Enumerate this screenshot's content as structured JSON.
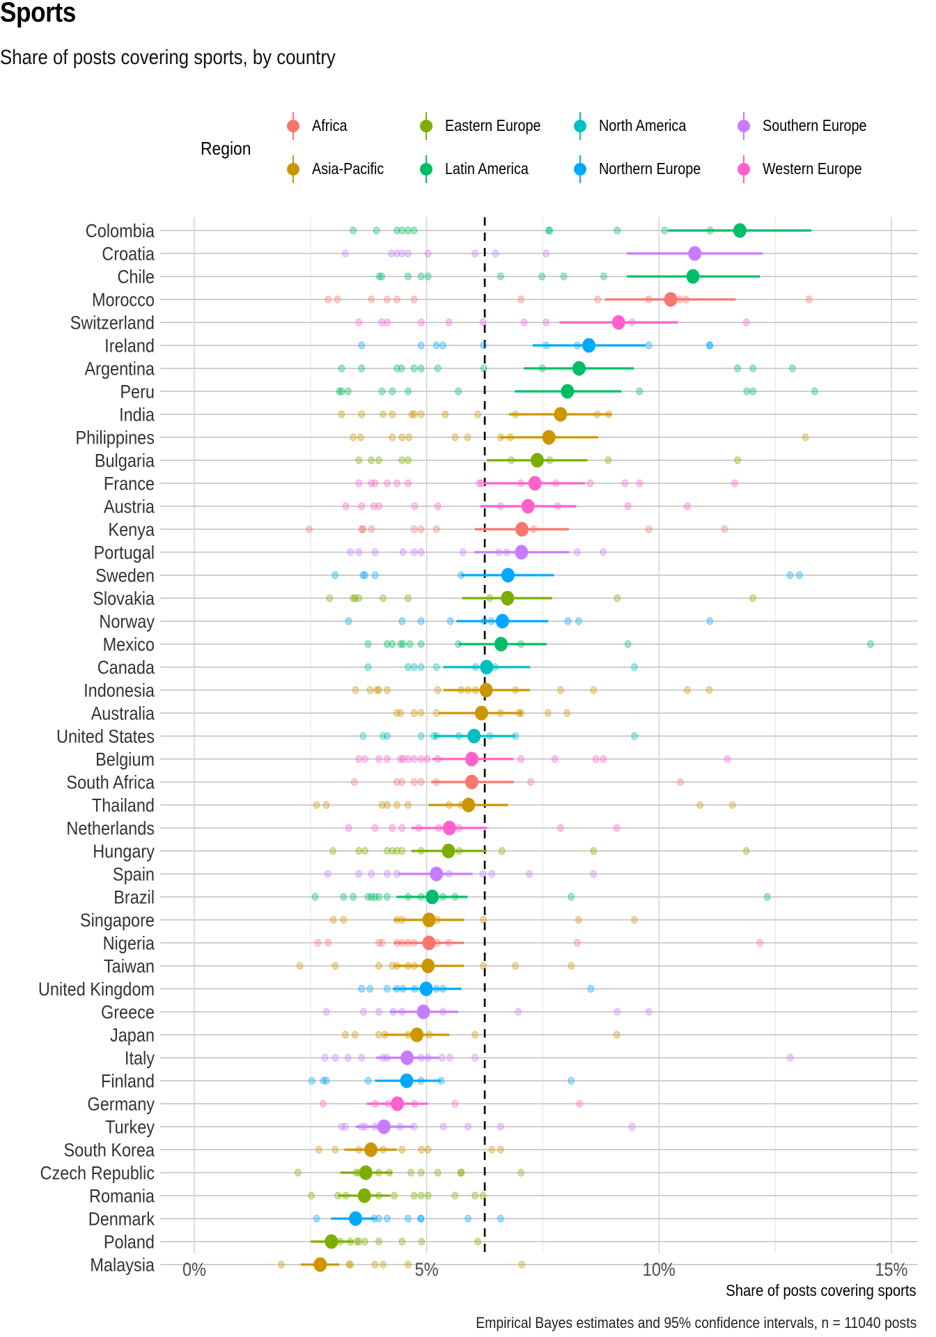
{
  "chart_data": {
    "type": "scatter",
    "title": "Sports",
    "subtitle": "Share of posts covering sports, by country",
    "xlabel": "Share of posts covering sports",
    "ylabel": "",
    "caption": "Empirical Bayes estimates and 95% confidence intervals, n = 11040 posts",
    "xlim": [
      -0.7,
      15.6
    ],
    "x_ticks": [
      0,
      5,
      10,
      15
    ],
    "x_tick_labels": [
      "0%",
      "5%",
      "10%",
      "15%"
    ],
    "reference_line": {
      "x": 6.25,
      "style": "dashed"
    },
    "grid": true,
    "legend": {
      "title": "Region",
      "placement": "top",
      "entries": [
        {
          "name": "Africa",
          "color": "#F8766D"
        },
        {
          "name": "Asia-Pacific",
          "color": "#CD9600"
        },
        {
          "name": "Eastern Europe",
          "color": "#7CAE00"
        },
        {
          "name": "Latin America",
          "color": "#00BE67"
        },
        {
          "name": "North America",
          "color": "#00BFC4"
        },
        {
          "name": "Northern Europe",
          "color": "#00A9FF"
        },
        {
          "name": "Southern Europe",
          "color": "#C77CFF"
        },
        {
          "name": "Western Europe",
          "color": "#FF61CC"
        }
      ]
    },
    "countries": [
      {
        "name": "Colombia",
        "region": "Latin America",
        "estimate": 11.74,
        "ci": [
          10.19,
          13.28
        ],
        "raw": [
          3.42,
          3.92,
          4.36,
          4.47,
          4.6,
          4.73,
          7.62,
          7.65,
          9.1,
          10.12,
          11.1
        ]
      },
      {
        "name": "Croatia",
        "region": "Southern Europe",
        "estimate": 10.77,
        "ci": [
          9.31,
          12.23
        ],
        "raw": [
          3.25,
          4.24,
          4.36,
          4.47,
          4.6,
          5.03,
          6.04,
          6.48,
          7.57
        ]
      },
      {
        "name": "Chile",
        "region": "Latin America",
        "estimate": 10.73,
        "ci": [
          9.31,
          12.17
        ],
        "raw": [
          3.98,
          4.03,
          4.6,
          4.88,
          5.03,
          6.59,
          7.48,
          7.95,
          8.81
        ]
      },
      {
        "name": "Morocco",
        "region": "Africa",
        "estimate": 10.25,
        "ci": [
          8.84,
          11.65
        ],
        "raw": [
          2.88,
          3.08,
          3.81,
          4.15,
          4.36,
          4.73,
          7.03,
          8.68,
          9.78,
          10.45,
          10.58,
          13.23
        ]
      },
      {
        "name": "Switzerland",
        "region": "Western Europe",
        "estimate": 9.13,
        "ci": [
          7.86,
          10.41
        ],
        "raw": [
          3.54,
          4.03,
          4.15,
          4.88,
          5.48,
          6.21,
          7.1,
          7.57,
          9.42,
          11.88
        ]
      },
      {
        "name": "Ireland",
        "region": "Northern Europe",
        "estimate": 8.49,
        "ci": [
          7.28,
          9.71
        ],
        "raw": [
          3.6,
          4.88,
          5.21,
          5.35,
          6.22,
          7.57,
          8.24,
          9.78,
          11.09,
          11.09
        ]
      },
      {
        "name": "Argentina",
        "region": "Latin America",
        "estimate": 8.28,
        "ci": [
          7.09,
          9.46
        ],
        "raw": [
          3.17,
          3.6,
          4.36,
          4.46,
          4.73,
          4.88,
          5.24,
          6.23,
          7.49,
          11.69,
          12.02,
          12.87
        ]
      },
      {
        "name": "Peru",
        "region": "Latin America",
        "estimate": 8.03,
        "ci": [
          6.9,
          9.19
        ],
        "raw": [
          3.12,
          3.17,
          3.31,
          4.04,
          4.26,
          4.6,
          5.68,
          9.58,
          11.89,
          12.02,
          13.35
        ]
      },
      {
        "name": "India",
        "region": "Asia-Pacific",
        "estimate": 7.88,
        "ci": [
          6.77,
          8.98
        ],
        "raw": [
          3.17,
          3.6,
          4.06,
          4.26,
          4.68,
          4.73,
          4.88,
          5.4,
          6.1,
          6.91,
          8.67,
          8.92
        ]
      },
      {
        "name": "Philippines",
        "region": "Asia-Pacific",
        "estimate": 7.63,
        "ci": [
          6.58,
          8.69
        ],
        "raw": [
          3.42,
          3.58,
          4.26,
          4.47,
          4.62,
          5.61,
          5.88,
          6.59,
          6.8,
          13.15
        ]
      },
      {
        "name": "Bulgaria",
        "region": "Eastern Europe",
        "estimate": 7.38,
        "ci": [
          6.3,
          8.46
        ],
        "raw": [
          3.54,
          3.81,
          3.97,
          4.47,
          4.6,
          6.82,
          7.65,
          8.91,
          11.69
        ]
      },
      {
        "name": "France",
        "region": "Western Europe",
        "estimate": 7.33,
        "ci": [
          6.24,
          8.41
        ],
        "raw": [
          3.54,
          3.81,
          3.89,
          4.15,
          4.36,
          4.6,
          6.13,
          6.18,
          7.03,
          7.78,
          8.52,
          9.27,
          9.58,
          11.63
        ]
      },
      {
        "name": "Austria",
        "region": "Western Europe",
        "estimate": 7.18,
        "ci": [
          6.15,
          8.22
        ],
        "raw": [
          3.26,
          3.6,
          3.86,
          3.97,
          4.74,
          5.24,
          6.59,
          7.82,
          9.33,
          10.61
        ]
      },
      {
        "name": "Kenya",
        "region": "Africa",
        "estimate": 7.05,
        "ci": [
          6.04,
          8.06
        ],
        "raw": [
          2.47,
          3.6,
          3.63,
          3.81,
          4.73,
          4.88,
          5.21,
          7.3,
          9.78,
          11.41
        ]
      },
      {
        "name": "Portugal",
        "region": "Southern Europe",
        "estimate": 7.04,
        "ci": [
          6.02,
          8.07
        ],
        "raw": [
          3.36,
          3.54,
          3.89,
          4.49,
          4.73,
          4.88,
          5.78,
          6.55,
          6.72,
          8.24,
          8.8
        ]
      },
      {
        "name": "Sweden",
        "region": "Northern Europe",
        "estimate": 6.75,
        "ci": [
          5.74,
          7.74
        ],
        "raw": [
          3.03,
          3.63,
          3.67,
          3.89,
          5.74,
          12.82,
          13.02
        ]
      },
      {
        "name": "Slovakia",
        "region": "Eastern Europe",
        "estimate": 6.74,
        "ci": [
          5.76,
          7.7
        ],
        "raw": [
          2.91,
          3.42,
          3.46,
          3.54,
          4.06,
          4.6,
          6.36,
          9.1,
          12.02
        ]
      },
      {
        "name": "Norway",
        "region": "Northern Europe",
        "estimate": 6.63,
        "ci": [
          5.64,
          7.62
        ],
        "raw": [
          3.32,
          4.47,
          4.88,
          5.51,
          6.24,
          6.39,
          8.04,
          8.27,
          11.09
        ]
      },
      {
        "name": "Mexico",
        "region": "Latin America",
        "estimate": 6.6,
        "ci": [
          5.68,
          7.58
        ],
        "raw": [
          3.74,
          4.15,
          4.26,
          4.44,
          4.49,
          4.64,
          4.88,
          5.68,
          7.03,
          9.33,
          14.55
        ]
      },
      {
        "name": "Canada",
        "region": "North America",
        "estimate": 6.29,
        "ci": [
          5.36,
          7.23
        ],
        "raw": [
          3.74,
          4.6,
          4.73,
          4.88,
          5.21,
          6.05,
          6.47,
          9.47
        ]
      },
      {
        "name": "Indonesia",
        "region": "Asia-Pacific",
        "estimate": 6.28,
        "ci": [
          5.36,
          7.22
        ],
        "raw": [
          3.47,
          3.78,
          3.93,
          3.97,
          4.15,
          5.24,
          5.74,
          5.89,
          6.05,
          6.91,
          7.88,
          8.59,
          10.61,
          11.08
        ]
      },
      {
        "name": "Australia",
        "region": "Asia-Pacific",
        "estimate": 6.18,
        "ci": [
          5.26,
          7.05
        ],
        "raw": [
          4.36,
          4.44,
          4.73,
          4.88,
          5.21,
          6.59,
          6.99,
          7.03,
          7.61,
          8.02
        ]
      },
      {
        "name": "United States",
        "region": "North America",
        "estimate": 6.02,
        "ci": [
          5.16,
          6.91
        ],
        "raw": [
          3.63,
          4.06,
          4.15,
          4.88,
          5.15,
          5.21,
          5.69,
          6.36,
          6.91,
          9.47
        ]
      },
      {
        "name": "Belgium",
        "region": "Western Europe",
        "estimate": 5.97,
        "ci": [
          5.12,
          6.87
        ],
        "raw": [
          3.54,
          3.67,
          3.97,
          4.15,
          4.44,
          4.49,
          4.6,
          4.73,
          4.88,
          5.01,
          5.24,
          7.03,
          7.76,
          8.64,
          8.8,
          11.47
        ]
      },
      {
        "name": "South Africa",
        "region": "Africa",
        "estimate": 5.97,
        "ci": [
          5.1,
          6.87
        ],
        "raw": [
          3.44,
          4.36,
          4.47,
          4.73,
          4.88,
          5.21,
          7.24,
          10.46
        ]
      },
      {
        "name": "Thailand",
        "region": "Asia-Pacific",
        "estimate": 5.9,
        "ci": [
          5.04,
          6.75
        ],
        "raw": [
          2.63,
          2.84,
          4.04,
          4.15,
          4.36,
          4.6,
          5.48,
          5.74,
          10.88,
          11.58
        ]
      },
      {
        "name": "Netherlands",
        "region": "Western Europe",
        "estimate": 5.49,
        "ci": [
          4.67,
          6.3
        ],
        "raw": [
          3.32,
          3.89,
          4.26,
          4.47,
          4.83,
          5.26,
          5.7,
          7.88,
          9.09
        ]
      },
      {
        "name": "Hungary",
        "region": "Eastern Europe",
        "estimate": 5.47,
        "ci": [
          4.67,
          6.29
        ],
        "raw": [
          2.98,
          3.54,
          3.67,
          4.15,
          4.26,
          4.36,
          4.47,
          4.88,
          5.7,
          6.62,
          8.59,
          11.88
        ]
      },
      {
        "name": "Spain",
        "region": "Southern Europe",
        "estimate": 5.21,
        "ci": [
          4.39,
          5.99
        ],
        "raw": [
          2.87,
          3.54,
          3.81,
          4.15,
          4.36,
          5.48,
          6.21,
          6.4,
          7.21,
          8.59
        ]
      },
      {
        "name": "Brazil",
        "region": "Latin America",
        "estimate": 5.12,
        "ci": [
          4.35,
          5.88
        ],
        "raw": [
          2.6,
          3.21,
          3.42,
          3.74,
          3.81,
          3.89,
          3.97,
          4.15,
          4.6,
          4.88,
          5.35,
          5.61,
          8.11,
          12.33
        ]
      },
      {
        "name": "Singapore",
        "region": "Asia-Pacific",
        "estimate": 5.05,
        "ci": [
          4.29,
          5.81
        ],
        "raw": [
          2.99,
          3.21,
          4.36,
          4.47,
          5.23,
          6.22,
          8.27,
          9.47
        ]
      },
      {
        "name": "Nigeria",
        "region": "Africa",
        "estimate": 5.05,
        "ci": [
          4.29,
          5.8
        ],
        "raw": [
          2.66,
          2.88,
          3.97,
          4.04,
          4.36,
          4.47,
          4.6,
          4.73,
          5.23,
          5.48,
          8.24,
          12.17
        ]
      },
      {
        "name": "Taiwan",
        "region": "Asia-Pacific",
        "estimate": 5.03,
        "ci": [
          4.29,
          5.8
        ],
        "raw": [
          2.27,
          3.03,
          3.97,
          4.26,
          4.36,
          4.6,
          4.73,
          6.22,
          6.91,
          8.11
        ]
      },
      {
        "name": "United Kingdom",
        "region": "Northern Europe",
        "estimate": 4.99,
        "ci": [
          4.27,
          5.75
        ],
        "raw": [
          3.6,
          3.78,
          4.15,
          4.36,
          4.49,
          4.74,
          5.21,
          5.35,
          8.53
        ]
      },
      {
        "name": "Greece",
        "region": "Southern Europe",
        "estimate": 4.93,
        "ci": [
          4.21,
          5.68
        ],
        "raw": [
          2.84,
          3.64,
          3.97,
          4.28,
          4.47,
          5.35,
          6.97,
          9.1,
          9.78
        ]
      },
      {
        "name": "Japan",
        "region": "Asia-Pacific",
        "estimate": 4.79,
        "ci": [
          4.07,
          5.49
        ],
        "raw": [
          3.25,
          3.46,
          3.97,
          4.1,
          4.6,
          5.06,
          6.04,
          9.09
        ]
      },
      {
        "name": "Italy",
        "region": "Southern Europe",
        "estimate": 4.58,
        "ci": [
          3.91,
          5.27
        ],
        "raw": [
          2.81,
          3.03,
          3.31,
          3.6,
          4.06,
          4.15,
          4.88,
          5.03,
          5.33,
          5.5,
          6.04,
          12.82
        ]
      },
      {
        "name": "Finland",
        "region": "Northern Europe",
        "estimate": 4.57,
        "ci": [
          3.89,
          5.31
        ],
        "raw": [
          2.53,
          2.78,
          2.84,
          3.74,
          4.88,
          5.31,
          8.11
        ]
      },
      {
        "name": "Germany",
        "region": "Western Europe",
        "estimate": 4.37,
        "ci": [
          3.71,
          5.03
        ],
        "raw": [
          2.77,
          3.89,
          4.17,
          4.74,
          5.61,
          8.29
        ]
      },
      {
        "name": "Turkey",
        "region": "Southern Europe",
        "estimate": 4.08,
        "ci": [
          3.47,
          4.73
        ],
        "raw": [
          3.17,
          3.25,
          3.6,
          3.67,
          3.89,
          4.43,
          4.73,
          5.36,
          5.89,
          6.59,
          9.42
        ]
      },
      {
        "name": "South Korea",
        "region": "Asia-Pacific",
        "estimate": 3.8,
        "ci": [
          3.23,
          4.36
        ],
        "raw": [
          2.68,
          3.03,
          3.54,
          4.06,
          4.47,
          4.89,
          5.03,
          6.4,
          6.59
        ]
      },
      {
        "name": "Czech Republic",
        "region": "Eastern Europe",
        "estimate": 3.69,
        "ci": [
          3.14,
          4.26
        ],
        "raw": [
          2.23,
          3.48,
          3.54,
          3.97,
          4.2,
          4.66,
          4.88,
          5.24,
          5.73,
          5.75,
          7.03
        ]
      },
      {
        "name": "Romania",
        "region": "Eastern Europe",
        "estimate": 3.66,
        "ci": [
          3.1,
          4.22
        ],
        "raw": [
          2.52,
          3.09,
          3.26,
          3.97,
          4.3,
          4.73,
          4.88,
          5.03,
          5.61,
          6.04,
          6.21
        ]
      },
      {
        "name": "Denmark",
        "region": "Northern Europe",
        "estimate": 3.47,
        "ci": [
          2.94,
          3.9
        ],
        "raw": [
          2.63,
          3.87,
          3.97,
          4.15,
          4.6,
          4.87,
          4.88,
          5.89,
          6.59
        ]
      },
      {
        "name": "Poland",
        "region": "Eastern Europe",
        "estimate": 2.95,
        "ci": [
          2.5,
          3.42
        ],
        "raw": [
          3.14,
          3.36,
          3.5,
          3.54,
          3.67,
          3.97,
          4.47,
          4.89,
          6.1
        ]
      },
      {
        "name": "Malaysia",
        "region": "Asia-Pacific",
        "estimate": 2.71,
        "ci": [
          2.29,
          3.12
        ],
        "raw": [
          1.87,
          3.33,
          3.36,
          3.89,
          4.06,
          4.6,
          7.05
        ]
      }
    ]
  }
}
